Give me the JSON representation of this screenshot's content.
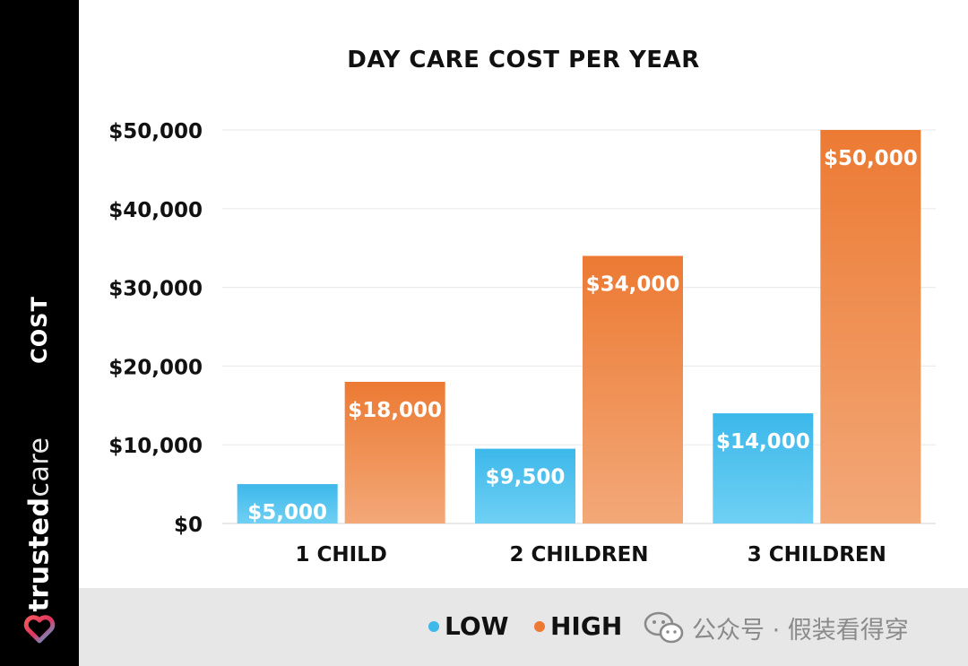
{
  "colors": {
    "low": "#3cb8ea",
    "low_light": "#6fd0f4",
    "high": "#ec7a33",
    "high_light": "#f3a878",
    "sidebar": "#000000",
    "footer": "#e7e7e7"
  },
  "sidebar": {
    "axis_label": "COST",
    "brand_bold": "trusted",
    "brand_light": "care",
    "logo_icon": "heart-logo-icon"
  },
  "legend": {
    "low_label": "LOW",
    "high_label": "HIGH"
  },
  "watermark": {
    "icon": "wechat-icon",
    "text": "公众号 · 假装看得穿"
  },
  "chart_data": {
    "type": "bar",
    "title": "DAY CARE COST PER YEAR",
    "xlabel": "",
    "ylabel": "COST",
    "categories": [
      "1 CHILD",
      "2 CHILDREN",
      "3 CHILDREN"
    ],
    "series": [
      {
        "name": "LOW",
        "values": [
          5000,
          9500,
          14000
        ],
        "labels": [
          "$5,000",
          "$9,500",
          "$14,000"
        ]
      },
      {
        "name": "HIGH",
        "values": [
          18000,
          34000,
          50000
        ],
        "labels": [
          "$18,000",
          "$34,000",
          "$50,000"
        ]
      }
    ],
    "ylim": [
      0,
      50000
    ],
    "yticks": [
      0,
      10000,
      20000,
      30000,
      40000,
      50000
    ],
    "ytick_labels": [
      "$0",
      "$10,000",
      "$20,000",
      "$30,000",
      "$40,000",
      "$50,000"
    ],
    "grid": true,
    "legend_position": "bottom-right"
  }
}
